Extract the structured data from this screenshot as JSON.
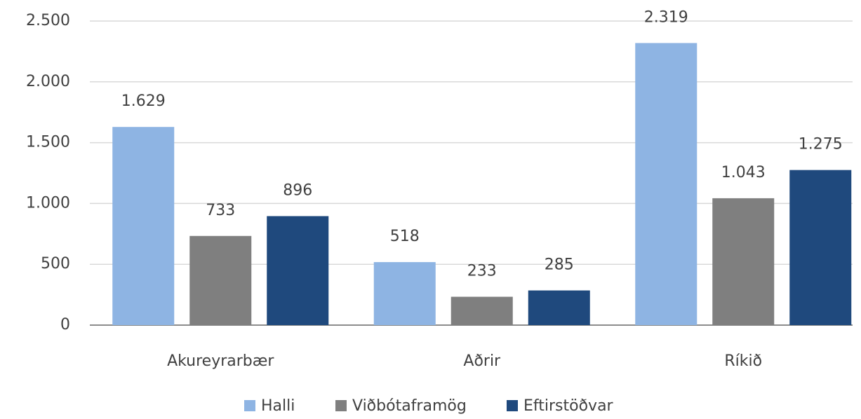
{
  "chart_data": {
    "type": "bar",
    "categories": [
      "Akureyrarbær",
      "Aðrir",
      "Ríkið"
    ],
    "series": [
      {
        "name": "Halli",
        "color": "#8eb4e3",
        "values": [
          1629,
          518,
          2319
        ],
        "value_labels": [
          "1.629",
          "518",
          "2.319"
        ]
      },
      {
        "name": "Viðbótaframög",
        "color": "#7f7f7f",
        "values": [
          733,
          233,
          1043
        ],
        "value_labels": [
          "733",
          "233",
          "1.043"
        ]
      },
      {
        "name": "Eftirstöðvar",
        "color": "#1f497d",
        "values": [
          896,
          285,
          1275
        ],
        "value_labels": [
          "896",
          "285",
          "1.275"
        ]
      }
    ],
    "ylim": [
      0,
      2500
    ],
    "yticks": [
      0,
      500,
      {
        "value": 1000,
        "label": "1.000"
      },
      {
        "value": 1500,
        "label": "1.500"
      },
      {
        "value": 2000,
        "label": "2.000"
      },
      {
        "value": 2500,
        "label": "2.500"
      }
    ],
    "grid": true,
    "legend": "bottom"
  }
}
